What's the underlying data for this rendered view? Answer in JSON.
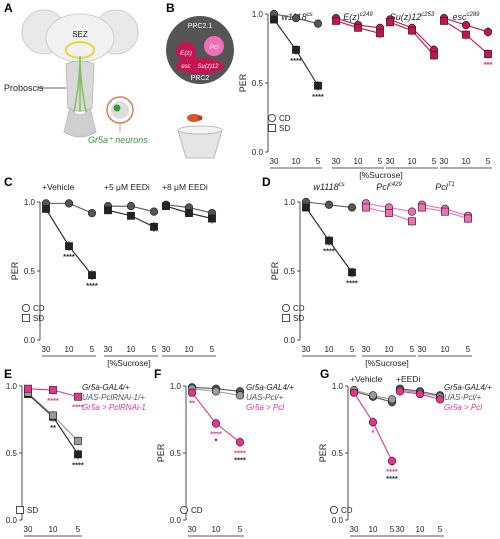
{
  "panel_letters": [
    "A",
    "B",
    "C",
    "D",
    "E",
    "F",
    "G"
  ],
  "schematic": {
    "sez_label": "SEZ",
    "proboscis_label": "Proboscis",
    "neurons_label": "Gr5a⁺ neurons",
    "prc21_label": "PRC2.1",
    "prc2_label": "PRC2",
    "pcl_label": "Pcl",
    "ezh_label": "E(z)",
    "esc_label": "esc",
    "suz_label": "Su(z)12"
  },
  "colors": {
    "black": "#222222",
    "dark_gray": "#555555",
    "gray": "#9a9a9a",
    "light_gray": "#cfcfcf",
    "magenta": "#e8338f",
    "pink": "#f06fb6",
    "crimson": "#c41452",
    "stat_red": "#e0204a"
  },
  "chart_data": [
    {
      "panel": "B",
      "type": "line",
      "ylabel": "PER",
      "xlabel": "[%Sucrose]",
      "ylim": [
        0,
        1
      ],
      "yticks": [
        "0.0",
        "0.5",
        "1.0"
      ],
      "categories": [
        "30",
        "10",
        "5"
      ],
      "legend": [
        {
          "label": "CD",
          "marker": "circle"
        },
        {
          "label": "SD",
          "marker": "square"
        }
      ],
      "groups": [
        {
          "title": "w1118cs",
          "series": [
            {
              "marker": "circle",
              "color": "#555555",
              "values": [
                1.0,
                0.97,
                0.93
              ]
            },
            {
              "marker": "square",
              "color": "#222222",
              "values": [
                0.96,
                0.74,
                0.48
              ],
              "stars": [
                "",
                "****",
                "****"
              ]
            }
          ]
        },
        {
          "title": "E(z)c249",
          "series": [
            {
              "marker": "circle",
              "color": "#c41452",
              "values": [
                0.97,
                0.92,
                0.9
              ]
            },
            {
              "marker": "square",
              "color": "#c41452",
              "values": [
                0.95,
                0.9,
                0.86
              ]
            }
          ]
        },
        {
          "title": "Su(z)12c253",
          "series": [
            {
              "marker": "circle",
              "color": "#c41452",
              "values": [
                0.96,
                0.9,
                0.74
              ]
            },
            {
              "marker": "square",
              "color": "#c41452",
              "values": [
                0.94,
                0.88,
                0.7
              ]
            }
          ]
        },
        {
          "title": "escc289",
          "series": [
            {
              "marker": "circle",
              "color": "#c41452",
              "values": [
                0.97,
                0.92,
                0.87
              ]
            },
            {
              "marker": "square",
              "color": "#c41452",
              "values": [
                0.95,
                0.85,
                0.71
              ]
            }
          ],
          "stars": {
            "text": "***",
            "color": "#e0204a"
          }
        }
      ]
    },
    {
      "panel": "C",
      "type": "line",
      "ylabel": "PER",
      "xlabel": "[%Sucrose]",
      "ylim": [
        0,
        1
      ],
      "yticks": [
        "0.0",
        "0.5",
        "1.0"
      ],
      "categories": [
        "30",
        "10",
        "5"
      ],
      "legend": [
        {
          "label": "CD",
          "marker": "circle"
        },
        {
          "label": "SD",
          "marker": "square"
        }
      ],
      "groups": [
        {
          "title": "+Vehicle",
          "series": [
            {
              "marker": "circle",
              "color": "#555555",
              "values": [
                0.99,
                0.99,
                0.92
              ]
            },
            {
              "marker": "square",
              "color": "#222222",
              "values": [
                0.95,
                0.68,
                0.47
              ],
              "stars": [
                "",
                "****",
                "****"
              ]
            }
          ]
        },
        {
          "title": "+5 μM EEDi",
          "series": [
            {
              "marker": "circle",
              "color": "#555555",
              "values": [
                0.97,
                0.97,
                0.93
              ]
            },
            {
              "marker": "square",
              "color": "#222222",
              "values": [
                0.94,
                0.9,
                0.82
              ]
            }
          ]
        },
        {
          "title": "+8 μM EEDi",
          "series": [
            {
              "marker": "circle",
              "color": "#555555",
              "values": [
                0.98,
                0.96,
                0.92
              ]
            },
            {
              "marker": "square",
              "color": "#222222",
              "values": [
                0.97,
                0.92,
                0.88
              ]
            }
          ]
        }
      ]
    },
    {
      "panel": "D",
      "type": "line",
      "ylabel": "PER",
      "xlabel": "[%Sucrose]",
      "ylim": [
        0,
        1
      ],
      "yticks": [
        "0.0",
        "0.5",
        "1.0"
      ],
      "categories": [
        "30",
        "10",
        "5"
      ],
      "legend": [
        {
          "label": "CD",
          "marker": "circle"
        },
        {
          "label": "SD",
          "marker": "square"
        }
      ],
      "groups": [
        {
          "title": "w1118cs",
          "series": [
            {
              "marker": "circle",
              "color": "#555555",
              "values": [
                1.0,
                0.98,
                0.96
              ]
            },
            {
              "marker": "square",
              "color": "#222222",
              "values": [
                0.96,
                0.72,
                0.49
              ],
              "stars": [
                "",
                "****",
                "****"
              ]
            }
          ]
        },
        {
          "title": "Pclc429",
          "series": [
            {
              "marker": "circle",
              "color": "#f06fb6",
              "values": [
                0.99,
                0.96,
                0.93
              ]
            },
            {
              "marker": "square",
              "color": "#f06fb6",
              "values": [
                0.96,
                0.92,
                0.86
              ]
            }
          ]
        },
        {
          "title": "PclT1",
          "series": [
            {
              "marker": "circle",
              "color": "#f06fb6",
              "values": [
                0.98,
                0.95,
                0.9
              ]
            },
            {
              "marker": "square",
              "color": "#f06fb6",
              "values": [
                0.96,
                0.93,
                0.88
              ]
            }
          ]
        }
      ]
    },
    {
      "panel": "E",
      "type": "line",
      "ylabel": "PER",
      "xlabel": "[%Sucrose]",
      "ylim": [
        0,
        1
      ],
      "yticks": [
        "0.0",
        "0.5",
        "1.0"
      ],
      "categories": [
        "30",
        "10",
        "5"
      ],
      "legend": [
        {
          "label": "SD",
          "marker": "square"
        }
      ],
      "genotype_labels": [
        {
          "text": "Gr5a-GAL4/+",
          "color": "#222222"
        },
        {
          "text": "UAS-PclRNAi-1/+",
          "color": "#555555"
        },
        {
          "text": "Gr5a > PclRNAi-1",
          "color": "#e8338f"
        }
      ],
      "groups": [
        {
          "title": "",
          "series": [
            {
              "marker": "square",
              "color": "#222222",
              "values": [
                0.94,
                0.77,
                0.49
              ],
              "stars": [
                "",
                "**",
                "****"
              ]
            },
            {
              "marker": "square",
              "color": "#9a9a9a",
              "values": [
                0.95,
                0.78,
                0.59
              ]
            },
            {
              "marker": "square",
              "color": "#e8338f",
              "values": [
                0.98,
                0.97,
                0.92
              ],
              "stars": [
                "",
                "****",
                "****"
              ],
              "star_color": "#e8338f"
            }
          ]
        }
      ]
    },
    {
      "panel": "F",
      "type": "line",
      "ylabel": "PER",
      "xlabel": "[%Sucrose]",
      "ylim": [
        0,
        1
      ],
      "yticks": [
        "0.0",
        "0.5",
        "1.0"
      ],
      "categories": [
        "30",
        "10",
        "5"
      ],
      "legend": [
        {
          "label": "CD",
          "marker": "circle"
        }
      ],
      "genotype_labels": [
        {
          "text": "Gr5a-GAL4/+",
          "color": "#222222"
        },
        {
          "text": "UAS-Pcl/+",
          "color": "#555555"
        },
        {
          "text": "Gr5a > Pcl",
          "color": "#e8338f"
        }
      ],
      "groups": [
        {
          "title": "",
          "series": [
            {
              "marker": "circle",
              "color": "#555555",
              "values": [
                0.99,
                0.98,
                0.96
              ]
            },
            {
              "marker": "circle",
              "color": "#9a9a9a",
              "values": [
                0.98,
                0.96,
                0.93
              ]
            },
            {
              "marker": "circle",
              "color": "#e8338f",
              "values": [
                0.95,
                0.72,
                0.58
              ],
              "stars": [
                "**",
                "****",
                "****"
              ],
              "star_color": "#e8338f",
              "stars2": [
                "",
                "*",
                "****"
              ]
            }
          ]
        }
      ]
    },
    {
      "panel": "G",
      "type": "line",
      "ylabel": "PER",
      "xlabel": "[%Sucrose]",
      "ylim": [
        0,
        1
      ],
      "yticks": [
        "0.0",
        "0.5",
        "1.0"
      ],
      "categories": [
        "30",
        "10",
        "5"
      ],
      "legend": [
        {
          "label": "CD",
          "marker": "circle"
        }
      ],
      "genotype_labels": [
        {
          "text": "Gr5a-GAL4/+",
          "color": "#222222"
        },
        {
          "text": "UAS-Pcl/+",
          "color": "#555555"
        },
        {
          "text": "Gr5a > Pcl",
          "color": "#e8338f"
        }
      ],
      "groups": [
        {
          "title": "+Vehicle",
          "series": [
            {
              "marker": "circle",
              "color": "#555555",
              "values": [
                0.96,
                0.92,
                0.88
              ]
            },
            {
              "marker": "circle",
              "color": "#9a9a9a",
              "values": [
                0.97,
                0.93,
                0.9
              ]
            },
            {
              "marker": "circle",
              "color": "#e8338f",
              "values": [
                0.95,
                0.73,
                0.44
              ],
              "stars": [
                "",
                "*",
                "****"
              ],
              "star_color": "#e8338f",
              "stars2": [
                "",
                "",
                "****"
              ]
            }
          ]
        },
        {
          "title": "+EEDi",
          "series": [
            {
              "marker": "circle",
              "color": "#555555",
              "values": [
                0.98,
                0.96,
                0.93
              ]
            },
            {
              "marker": "circle",
              "color": "#9a9a9a",
              "values": [
                0.97,
                0.95,
                0.92
              ]
            },
            {
              "marker": "circle",
              "color": "#e8338f",
              "values": [
                0.96,
                0.94,
                0.9
              ]
            }
          ]
        }
      ]
    }
  ]
}
